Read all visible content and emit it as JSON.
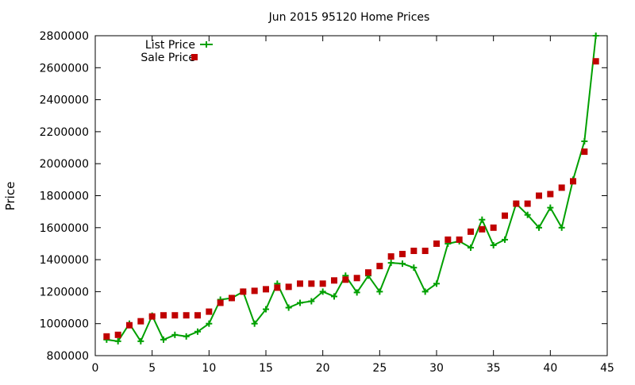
{
  "chart_data": {
    "type": "line",
    "title": "Jun 2015 95120 Home Prices",
    "xlabel": "",
    "ylabel": "Price",
    "xlim": [
      0,
      45
    ],
    "ylim": [
      800000,
      2800000
    ],
    "xticks": [
      0,
      5,
      10,
      15,
      20,
      25,
      30,
      35,
      40,
      45
    ],
    "yticks": [
      800000,
      1000000,
      1200000,
      1400000,
      1600000,
      1800000,
      2000000,
      2200000,
      2400000,
      2600000,
      2800000
    ],
    "grid": false,
    "legend_position": "top-left",
    "series": [
      {
        "name": "List Price",
        "style": "line-with-plus-markers",
        "color": "#00a000",
        "x": [
          1,
          2,
          3,
          4,
          5,
          6,
          7,
          8,
          9,
          10,
          11,
          12,
          13,
          14,
          15,
          16,
          17,
          18,
          19,
          20,
          21,
          22,
          23,
          24,
          25,
          26,
          27,
          28,
          29,
          30,
          31,
          32,
          33,
          34,
          35,
          36,
          37,
          38,
          39,
          40,
          41,
          42,
          43,
          44
        ],
        "values": [
          900000,
          890000,
          1000000,
          890000,
          1050000,
          900000,
          930000,
          920000,
          950000,
          1000000,
          1150000,
          1160000,
          1200000,
          1000000,
          1090000,
          1250000,
          1100000,
          1130000,
          1140000,
          1200000,
          1170000,
          1300000,
          1195000,
          1300000,
          1200000,
          1380000,
          1375000,
          1350000,
          1200000,
          1250000,
          1500000,
          1515000,
          1475000,
          1650000,
          1490000,
          1525000,
          1750000,
          1680000,
          1600000,
          1725000,
          1600000,
          1900000,
          2140000,
          2800000
        ]
      },
      {
        "name": "Sale Price",
        "style": "square-markers",
        "color": "#c00000",
        "x": [
          1,
          2,
          3,
          4,
          5,
          6,
          7,
          8,
          9,
          10,
          11,
          12,
          13,
          14,
          15,
          16,
          17,
          18,
          19,
          20,
          21,
          22,
          23,
          24,
          25,
          26,
          27,
          28,
          29,
          30,
          31,
          32,
          33,
          34,
          35,
          36,
          37,
          38,
          39,
          40,
          41,
          42,
          43,
          44
        ],
        "values": [
          920000,
          930000,
          990000,
          1015000,
          1045000,
          1052000,
          1052000,
          1052000,
          1052000,
          1075000,
          1130000,
          1160000,
          1200000,
          1205000,
          1215000,
          1225000,
          1230000,
          1250000,
          1250000,
          1250000,
          1270000,
          1275000,
          1285000,
          1320000,
          1360000,
          1420000,
          1435000,
          1455000,
          1455000,
          1500000,
          1525000,
          1525000,
          1575000,
          1590000,
          1600000,
          1675000,
          1750000,
          1750000,
          1800000,
          1810000,
          1850000,
          1890000,
          2075000,
          2640000
        ]
      }
    ]
  }
}
